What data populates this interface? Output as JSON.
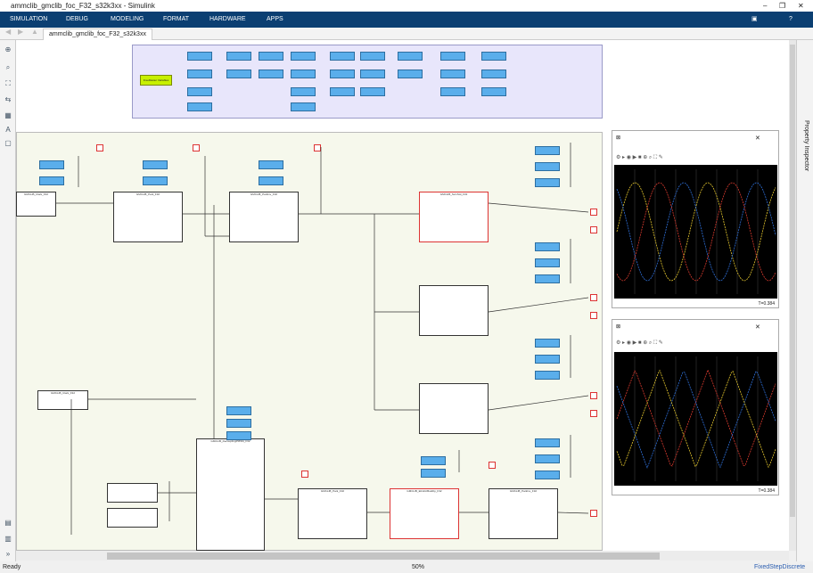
{
  "window": {
    "title": "ammclib_gmclib_foc_F32_s32k3xx - Simulink"
  },
  "menu": [
    "SIMULATION",
    "DEBUG",
    "MODELING",
    "FORMAT",
    "HARDWARE",
    "APPS"
  ],
  "tab": {
    "label": "ammclib_gmclib_foc_F32_s32k3xx"
  },
  "side_panel": {
    "label": "Property Inspector"
  },
  "data_panel": {
    "green_block": "FreeMaster Variables"
  },
  "blocks": [
    "GMCLIB_Clark_F32",
    "GMCLIB_Park_F32",
    "GMCLIB_ParkInv_F32",
    "GMCLIB_SvmStd_F32",
    "",
    "",
    "GMCLIB_Clark_F32",
    "GMCLIB_DecouplingPMSM_F32",
    "",
    "",
    "GMCLIB_Park_F32",
    "GMCLIB_ElimDcBusRip_F32",
    "GMCLIB_ParkInv_F32"
  ],
  "scopes": [
    {
      "status_right": "T=0.384",
      "bg": "#000000",
      "colors": [
        "#e6c82e",
        "#2e6fd8",
        "#d83a2e"
      ]
    },
    {
      "status_right": "T=0.384",
      "bg": "#000000",
      "colors": [
        "#d83a2e",
        "#2e6fd8",
        "#e6c82e"
      ]
    }
  ],
  "status": {
    "left": "Ready",
    "zoom": "50%",
    "solver": "FixedStepDiscrete"
  },
  "colors": {
    "menu_bg": "#0b3f72",
    "subsystem_fill": "#5aaeeb",
    "data_panel": "#e8e6fb",
    "green_block": "#c8f000"
  }
}
